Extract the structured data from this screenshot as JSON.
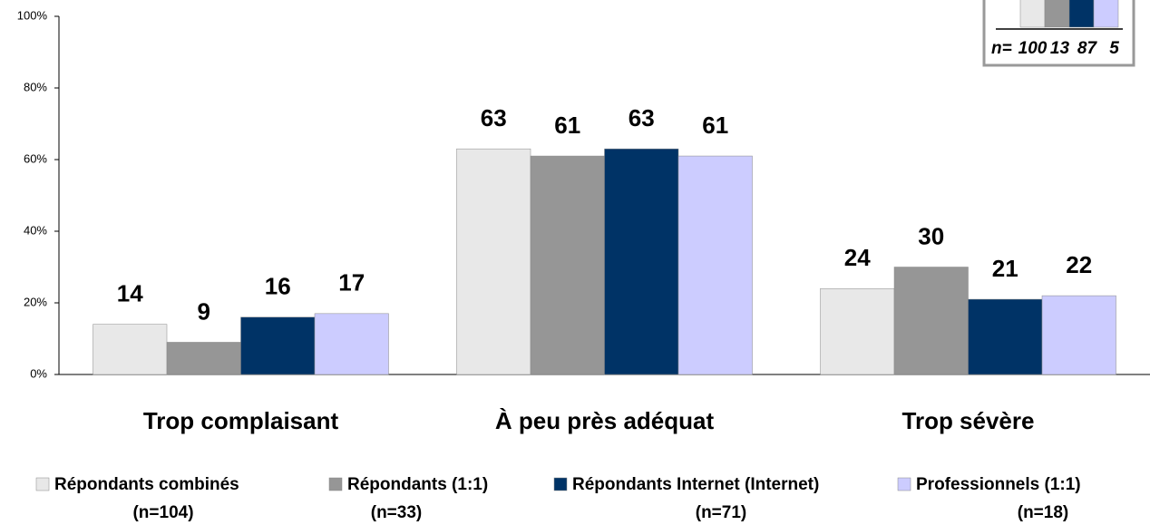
{
  "chart_data": {
    "type": "bar",
    "categories": [
      "Trop complaisant",
      "À peu près adéquat",
      "Trop sévère"
    ],
    "series": [
      {
        "name": "Répondants combinés",
        "n": "(n=104)",
        "color": "#e8e8e8",
        "values": [
          14,
          63,
          24
        ]
      },
      {
        "name": "Répondants (1:1)",
        "n": "(n=33)",
        "color": "#969696",
        "values": [
          9,
          61,
          30
        ]
      },
      {
        "name": "Répondants Internet (Internet)",
        "n": "(n=71)",
        "color": "#003366",
        "values": [
          16,
          63,
          21
        ]
      },
      {
        "name": "Professionnels (1:1)",
        "n": "(n=18)",
        "color": "#ccccff",
        "values": [
          17,
          61,
          22
        ]
      }
    ],
    "ylim": [
      0,
      100
    ],
    "yticks": [
      {
        "value": 0,
        "label": "0%"
      },
      {
        "value": 20,
        "label": "20%"
      },
      {
        "value": 40,
        "label": "40%"
      },
      {
        "value": 60,
        "label": "60%"
      },
      {
        "value": 80,
        "label": "80%"
      },
      {
        "value": 100,
        "label": "100%"
      }
    ],
    "inset": {
      "label": "n=",
      "values": [
        100,
        13,
        87,
        5
      ]
    }
  }
}
